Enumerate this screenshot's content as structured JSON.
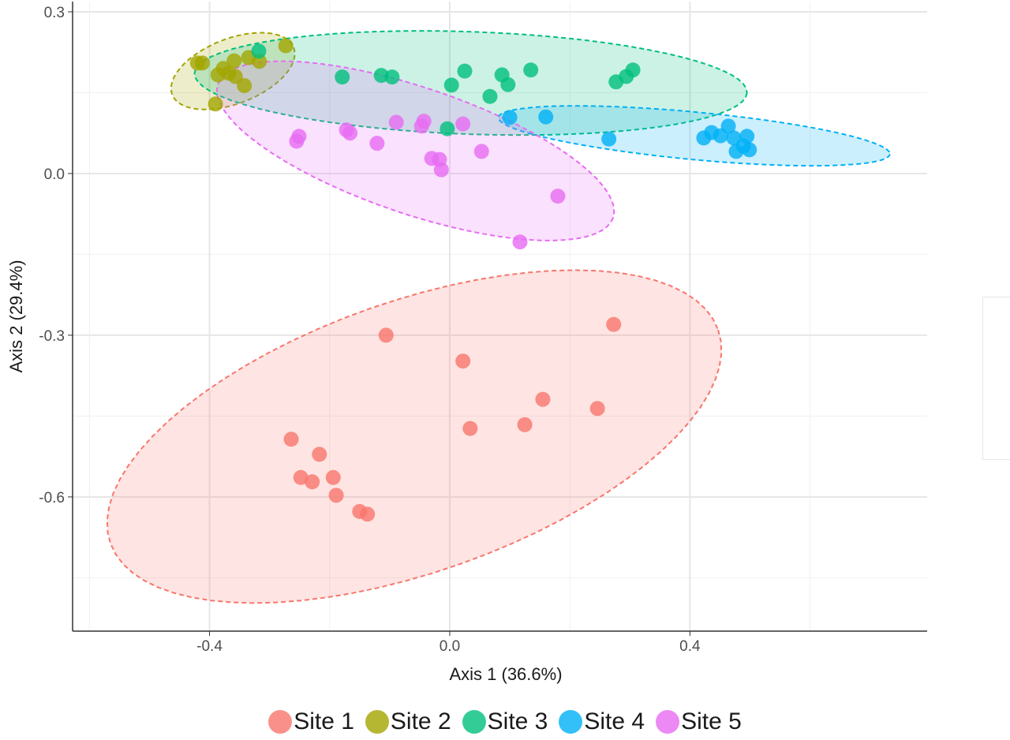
{
  "chart_data": {
    "type": "scatter",
    "xlabel": "Axis 1 (36.6%)",
    "ylabel": "Axis 2 (29.4%)",
    "xlim": [
      -0.628,
      0.795
    ],
    "ylim": [
      -0.849,
      0.319
    ],
    "x_ticks": [
      -0.4,
      0.0,
      0.4
    ],
    "x_tick_labels": [
      "-0.4",
      "0.0",
      "0.4"
    ],
    "x_minor": [
      -0.6,
      -0.2,
      0.2,
      0.6
    ],
    "y_ticks": [
      0.3,
      0.0,
      -0.3,
      -0.6
    ],
    "y_tick_labels": [
      "0.3",
      "0.0",
      "-0.3",
      "-0.6"
    ],
    "y_minor": [
      0.15,
      -0.15,
      -0.45,
      -0.75
    ],
    "grid": true,
    "legend_position": "bottom",
    "series": [
      {
        "name": "Site 1",
        "color": "#F8766D",
        "points": [
          [
            -0.106,
            -0.3
          ],
          [
            0.022,
            -0.348
          ],
          [
            0.273,
            -0.28
          ],
          [
            0.155,
            -0.419
          ],
          [
            0.246,
            -0.436
          ],
          [
            0.125,
            -0.466
          ],
          [
            0.034,
            -0.473
          ],
          [
            -0.264,
            -0.493
          ],
          [
            -0.217,
            -0.521
          ],
          [
            -0.248,
            -0.564
          ],
          [
            -0.229,
            -0.572
          ],
          [
            -0.194,
            -0.564
          ],
          [
            -0.189,
            -0.597
          ],
          [
            -0.15,
            -0.627
          ],
          [
            -0.137,
            -0.632
          ]
        ],
        "ellipse": {
          "center": [
            -0.059,
            -0.488
          ],
          "u": [
            0.506,
            0.198
          ],
          "v": [
            0.075,
            -0.237
          ]
        }
      },
      {
        "name": "Site 2",
        "color": "#A3A500",
        "points": [
          [
            -0.42,
            0.205
          ],
          [
            -0.412,
            0.205
          ],
          [
            -0.273,
            0.237
          ],
          [
            -0.359,
            0.209
          ],
          [
            -0.377,
            0.195
          ],
          [
            -0.386,
            0.183
          ],
          [
            -0.357,
            0.18
          ],
          [
            -0.342,
            0.163
          ],
          [
            -0.335,
            0.215
          ],
          [
            -0.317,
            0.208
          ],
          [
            -0.39,
            0.129
          ],
          [
            -0.368,
            0.186
          ]
        ],
        "ellipse": {
          "center": [
            -0.361,
            0.19
          ],
          "u": [
            0.101,
            0.044
          ],
          "v": [
            0.02,
            -0.056
          ]
        }
      },
      {
        "name": "Site 3",
        "color": "#00BF7D",
        "points": [
          [
            -0.318,
            0.227
          ],
          [
            -0.179,
            0.179
          ],
          [
            -0.114,
            0.182
          ],
          [
            -0.096,
            0.179
          ],
          [
            0.025,
            0.19
          ],
          [
            0.003,
            0.164
          ],
          [
            0.067,
            0.143
          ],
          [
            0.087,
            0.183
          ],
          [
            0.097,
            0.165
          ],
          [
            0.135,
            0.192
          ],
          [
            0.277,
            0.17
          ],
          [
            0.294,
            0.18
          ],
          [
            0.305,
            0.192
          ],
          [
            -0.004,
            0.083
          ]
        ],
        "ellipse": {
          "center": [
            0.035,
            0.168
          ],
          "u": [
            0.46,
            -0.018
          ],
          "v": [
            -0.003,
            -0.095
          ]
        }
      },
      {
        "name": "Site 4",
        "color": "#00B0F6",
        "points": [
          [
            0.1,
            0.104
          ],
          [
            0.16,
            0.105
          ],
          [
            0.265,
            0.064
          ],
          [
            0.423,
            0.066
          ],
          [
            0.436,
            0.076
          ],
          [
            0.451,
            0.07
          ],
          [
            0.464,
            0.088
          ],
          [
            0.473,
            0.066
          ],
          [
            0.495,
            0.069
          ],
          [
            0.489,
            0.051
          ],
          [
            0.477,
            0.041
          ],
          [
            0.499,
            0.044
          ]
        ],
        "ellipse": {
          "center": [
            0.407,
            0.07
          ],
          "u": [
            0.326,
            -0.034
          ],
          "v": [
            -0.003,
            -0.044
          ]
        }
      },
      {
        "name": "Site 5",
        "color": "#E76BF3",
        "points": [
          [
            -0.251,
            0.069
          ],
          [
            -0.255,
            0.06
          ],
          [
            -0.172,
            0.081
          ],
          [
            -0.166,
            0.075
          ],
          [
            -0.121,
            0.056
          ],
          [
            -0.089,
            0.095
          ],
          [
            -0.043,
            0.097
          ],
          [
            -0.047,
            0.088
          ],
          [
            0.022,
            0.092
          ],
          [
            -0.03,
            0.028
          ],
          [
            -0.017,
            0.026
          ],
          [
            -0.014,
            0.007
          ],
          [
            0.053,
            0.041
          ],
          [
            0.18,
            -0.042
          ],
          [
            0.117,
            -0.127
          ]
        ],
        "ellipse": {
          "center": [
            -0.057,
            0.042
          ],
          "u": [
            0.329,
            -0.124
          ],
          "v": [
            -0.034,
            -0.111
          ]
        }
      }
    ]
  }
}
